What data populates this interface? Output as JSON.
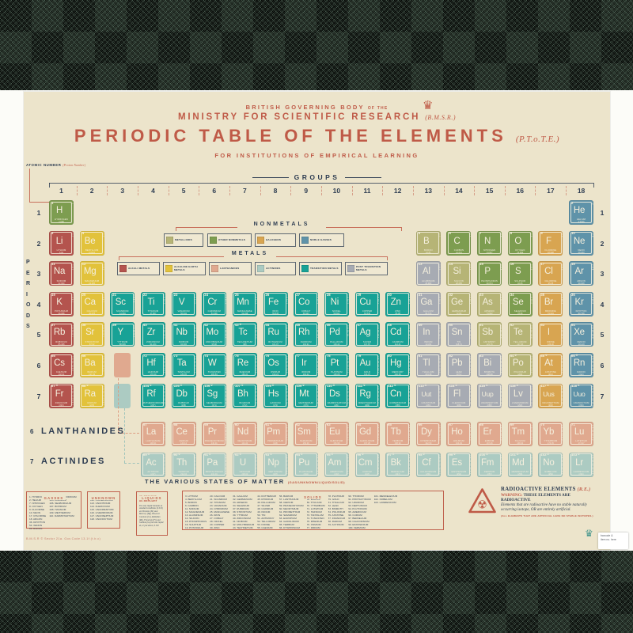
{
  "header": {
    "line1a": "BRITISH GOVERNING BODY",
    "line1b": "OF THE",
    "line2": "MINISTRY FOR SCIENTIFIC RESEARCH",
    "line2_note": "(B.M.S.R.)",
    "title": "PERIODIC TABLE OF THE ELEMENTS",
    "title_note": "(P.T.o.T.E.)",
    "line4": "FOR INSTITUTIONS OF EMPIRICAL LEARNING"
  },
  "groups_title": "GROUPS",
  "periods_title": "PERIODS",
  "group_numbers": [
    "1",
    "2",
    "3",
    "4",
    "5",
    "6",
    "7",
    "8",
    "9",
    "10",
    "11",
    "12",
    "13",
    "14",
    "15",
    "16",
    "17",
    "18"
  ],
  "period_numbers": [
    "1",
    "2",
    "3",
    "4",
    "5",
    "6",
    "7"
  ],
  "annotation": {
    "atomic_number": "ATOMIC NUMBER",
    "atomic_number_note": "(Proton Number)",
    "electron": "ELECTRON CONFIGURATION",
    "symbol": "ELEMENTAL SYMBOL",
    "symbol_note": "(Chemical Symbol)",
    "name": "ELEMENT NAME",
    "weight": "ATOMIC WEIGHT",
    "weight_note": "(Relative Atomic Mass)"
  },
  "legend": {
    "nonmetals_title": "NONMETALS",
    "metals_title": "METALS",
    "nonmetals": [
      {
        "label": "METALLOIDS",
        "cat": "met"
      },
      {
        "label": "OTHER NONMETALS",
        "cat": "nm"
      },
      {
        "label": "HALOGENS",
        "cat": "hal"
      },
      {
        "label": "NOBLE GASSES",
        "cat": "ng"
      }
    ],
    "metals": [
      {
        "label": "ALKALI METALS",
        "cat": "alk"
      },
      {
        "label": "ALKALINE EARTH METALS",
        "cat": "ae"
      },
      {
        "label": "LANTHANIDES",
        "cat": "lan"
      },
      {
        "label": "ACTINIDES",
        "cat": "act"
      },
      {
        "label": "TRANSITION METALS",
        "cat": "tm"
      },
      {
        "label": "POST TRANSITION METALS",
        "cat": "ptm"
      }
    ]
  },
  "fblock": {
    "lan_num": "6",
    "lan_label": "LANTHANIDES",
    "act_num": "7",
    "act_label": "ACTINIDES"
  },
  "states": {
    "title": "THE VARIOUS STATES OF MATTER",
    "subtitle": "(GAS/UNKNOWN/LIQUID/SOLID)",
    "gasses": {
      "title": "GASSES",
      "columns": [
        [
          "1. HYDROGEN",
          "2. HELIUM",
          "7. NITROGEN",
          "8. OXYGEN",
          "9. FLUORINE",
          "10. NEON",
          "17. CHLORINE",
          "18. ARGON",
          "36. KRYPTON",
          "54. XENON",
          "86. RADON"
        ],
        [
          "104. RUTHERFORDIUM",
          "105. DUBNIUM",
          "106. SEABORGIUM",
          "107. BOHRIUM",
          "108. HASSIUM",
          "109. MEITNERIUM",
          "110. DARMSTADTIUM"
        ]
      ]
    },
    "unknown": {
      "title": "UNKNOWN",
      "columns": [
        [
          "111. ROENTGENIUM",
          "112. COPERNICIUM",
          "113. UNUNTRIUM",
          "114. FLEROVIUM",
          "115. UNUNPENTIUM",
          "116. LIVERMORIUM",
          "117. UNUNSEPTIUM",
          "118. UNUNOCTIUM"
        ]
      ]
    },
    "liquids": {
      "title": "LIQUIDS",
      "items": [
        "35. BROMINE",
        "80. MERCURY"
      ],
      "note": "The only liquid elements at standard conditions (S.T.P.) are Bromine (Br) and Mercury (Hg). However Caesium (Cs), Rubidium (Rb), Francium (Fr) and Gallium (Ga) become liquid at, or just above, S.T.P."
    },
    "solids": {
      "title": "SOLIDS",
      "columns": [
        [
          "3. LITHIUM",
          "4. BERYLLIUM",
          "5. BORON",
          "6. CARBON",
          "11. SODIUM",
          "12. MAGNESIUM",
          "13. ALUMINIUM",
          "14. SILICON",
          "15. PHOSPHORUS",
          "16. SULPHUR",
          "19. POTASSIUM"
        ],
        [
          "20. CALCIUM",
          "21. SCANDIUM",
          "22. TITANIUM",
          "23. VANADIUM",
          "24. CHROMIUM",
          "25. MANGANESE",
          "26. IRON",
          "27. COBALT",
          "28. NICKEL",
          "29. COPPER",
          "30. ZINC"
        ],
        [
          "31. GALLIUM",
          "32. GERMANIUM",
          "33. ARSENIC",
          "34. SELENIUM",
          "37. RUBIDIUM",
          "38. STRONTIUM",
          "39. YTTRIUM",
          "40. ZIRCONIUM",
          "41. NIOBIUM",
          "42. MOLYBDENUM",
          "43. TECHNETIUM"
        ],
        [
          "44. RUTHENIUM",
          "45. RHODIUM",
          "46. PALLADIUM",
          "47. SILVER",
          "48. CADMIUM",
          "49. INDIUM",
          "50. TIN",
          "51. ANTIMONY",
          "52. TELLURIUM",
          "53. IODINE",
          "55. CAESIUM"
        ],
        [
          "56. BARIUM",
          "57. LANTHANUM",
          "58. CERIUM",
          "59. PRASEODYMIUM",
          "60. NEODYMIUM",
          "61. PROMETHIUM",
          "62. SAMARIUM",
          "63. EUROPIUM",
          "64. GADOLINIUM",
          "65. TERBIUM",
          "66. DYSPROSIUM"
        ],
        [
          "67. HOLMIUM",
          "68. ERBIUM",
          "69. THULIUM",
          "70. YTTERBIUM",
          "71. LUTETIUM",
          "72. HAFNIUM",
          "73. TANTALUM",
          "74. TUNGSTEN",
          "75. RHENIUM",
          "76. OSMIUM",
          "77. IRIDIUM"
        ],
        [
          "78. PLATINUM",
          "79. GOLD",
          "81. THALLIUM",
          "82. LEAD",
          "83. BISMUTH",
          "84. POLONIUM",
          "85. ASTATINE",
          "87. FRANCIUM",
          "88. RADIUM",
          "89. ACTINIUM"
        ],
        [
          "90. THORIUM",
          "91. PROTACTINIUM",
          "92. URANIUM",
          "93. NEPTUNIUM",
          "94. PLUTONIUM",
          "95. AMERICIUM",
          "96. CURIUM",
          "97. BERKELIUM",
          "98. CALIFORNIUM",
          "99. EINSTEINIUM",
          "100. FERMIUM"
        ],
        [
          "101. MENDELEVIUM",
          "102. NOBELIUM",
          "103. LAWRENCIUM"
        ]
      ]
    }
  },
  "radioactive": {
    "title": "RADIOACTIVE ELEMENTS",
    "title_note": "(R.E.)",
    "warning_label": "WARNING:",
    "warning_text": "THESE ELEMENTS ARE RADIOACTIVE",
    "body": "Elements that are radioactive have no stable naturally occurring isotope, OR are entirely artificial.",
    "footnote": "(ALL ELEMENTS THAT ARE ARTIFICIAL HAVE NO STABLE ISOTOPES.)"
  },
  "fine_print": "B.M.S.R © Sector 21a. Gov.Code 13.1f (t.b.c)",
  "sticker": {
    "line1": "barcode &",
    "line2": "item no. here"
  },
  "icons": {
    "crown": "♛",
    "crest": "♛",
    "trefoil": "☢"
  },
  "colors": {
    "alk": "#b4544e",
    "ae": "#e2c23b",
    "tm": "#18a296",
    "ptm": "#a7abb3",
    "met": "#b6b476",
    "nm": "#7d9d50",
    "hal": "#d8a551",
    "ng": "#5f93a9",
    "lan": "#e0a98f",
    "act": "#accbc2",
    "ink": "#2e3d52",
    "accent": "#bf5a47",
    "paper": "#ece4cb",
    "cell_text": "#f4efdd"
  },
  "elements": [
    [
      1,
      "H",
      "HYDROGEN",
      "1.008",
      "nm",
      0,
      "1"
    ],
    [
      2,
      "He",
      "HELIUM",
      "4.0026",
      "ng",
      0,
      "2"
    ],
    [
      3,
      "Li",
      "LITHIUM",
      "6.94",
      "alk",
      0,
      "2,1"
    ],
    [
      4,
      "Be",
      "BERYLLIUM",
      "9.0122",
      "ae",
      0,
      "2,2"
    ],
    [
      5,
      "B",
      "BORON",
      "10.81",
      "met",
      0,
      "2,3"
    ],
    [
      6,
      "C",
      "CARBON",
      "12.011",
      "nm",
      0,
      "2,4"
    ],
    [
      7,
      "N",
      "NITROGEN",
      "14.007",
      "nm",
      0,
      "2,5"
    ],
    [
      8,
      "O",
      "OXYGEN",
      "15.999",
      "nm",
      0,
      "2,6"
    ],
    [
      9,
      "F",
      "FLUORINE",
      "18.998",
      "hal",
      0,
      "2,7"
    ],
    [
      10,
      "Ne",
      "NEON",
      "20.180",
      "ng",
      0,
      "2,8"
    ],
    [
      11,
      "Na",
      "SODIUM",
      "22.990",
      "alk",
      0,
      "2,8,1"
    ],
    [
      12,
      "Mg",
      "MAGNESIUM",
      "24.305",
      "ae",
      0,
      "2,8,2"
    ],
    [
      13,
      "Al",
      "ALUMINIUM",
      "26.982",
      "ptm",
      0,
      "2,8,3"
    ],
    [
      14,
      "Si",
      "SILICON",
      "28.085",
      "met",
      0,
      "2,8,4"
    ],
    [
      15,
      "P",
      "PHOSPHORUS",
      "30.974",
      "nm",
      0,
      "2,8,5"
    ],
    [
      16,
      "S",
      "SULPHUR",
      "32.06",
      "nm",
      0,
      "2,8,6"
    ],
    [
      17,
      "Cl",
      "CHLORINE",
      "35.45",
      "hal",
      0,
      "2,8,7"
    ],
    [
      18,
      "Ar",
      "ARGON",
      "39.948",
      "ng",
      0,
      "2,8,8"
    ],
    [
      19,
      "K",
      "POTASSIUM",
      "39.098",
      "alk",
      0,
      "2,8,8,1"
    ],
    [
      20,
      "Ca",
      "CALCIUM",
      "40.078",
      "ae",
      0,
      "2,8,8,2"
    ],
    [
      21,
      "Sc",
      "SCANDIUM",
      "44.956",
      "tm",
      0,
      "2,8,9,2"
    ],
    [
      22,
      "Ti",
      "TITANIUM",
      "47.867",
      "tm",
      0,
      "2,8,10,2"
    ],
    [
      23,
      "V",
      "VANADIUM",
      "50.942",
      "tm",
      0,
      "2,8,11,2"
    ],
    [
      24,
      "Cr",
      "CHROMIUM",
      "51.996",
      "tm",
      0,
      "2,8,13,1"
    ],
    [
      25,
      "Mn",
      "MANGANESE",
      "54.938",
      "tm",
      0,
      "2,8,13,2"
    ],
    [
      26,
      "Fe",
      "IRON",
      "55.845",
      "tm",
      0,
      "2,8,14,2"
    ],
    [
      27,
      "Co",
      "COBALT",
      "58.933",
      "tm",
      0,
      "2,8,15,2"
    ],
    [
      28,
      "Ni",
      "NICKEL",
      "58.693",
      "tm",
      0,
      "2,8,16,2"
    ],
    [
      29,
      "Cu",
      "COPPER",
      "63.546",
      "tm",
      0,
      "2,8,18,1"
    ],
    [
      30,
      "Zn",
      "ZINC",
      "65.38",
      "tm",
      0,
      "2,8,18,2"
    ],
    [
      31,
      "Ga",
      "GALLIUM",
      "69.723",
      "ptm",
      0,
      "2,8,18,3"
    ],
    [
      32,
      "Ge",
      "GERMANIUM",
      "72.63",
      "met",
      0,
      "2,8,18,4"
    ],
    [
      33,
      "As",
      "ARSENIC",
      "74.922",
      "met",
      0,
      "2,8,18,5"
    ],
    [
      34,
      "Se",
      "SELENIUM",
      "78.96",
      "nm",
      0,
      "2,8,18,6"
    ],
    [
      35,
      "Br",
      "BROMINE",
      "79.904",
      "hal",
      0,
      "2,8,18,7"
    ],
    [
      36,
      "Kr",
      "KRYPTON",
      "83.798",
      "ng",
      0,
      "2,8,18,8"
    ],
    [
      37,
      "Rb",
      "RUBIDIUM",
      "85.468",
      "alk",
      0,
      "2,8,18,8,1"
    ],
    [
      38,
      "Sr",
      "STRONTIUM",
      "87.62",
      "ae",
      0,
      "2,8,18,8,2"
    ],
    [
      39,
      "Y",
      "YTTRIUM",
      "88.906",
      "tm",
      0,
      "2,8,18,9,2"
    ],
    [
      40,
      "Zr",
      "ZIRCONIUM",
      "91.224",
      "tm",
      0,
      "2,8,18,10,2"
    ],
    [
      41,
      "Nb",
      "NIOBIUM",
      "92.906",
      "tm",
      0,
      "2,8,18,12,1"
    ],
    [
      42,
      "Mo",
      "MOLYBDENUM",
      "95.96",
      "tm",
      0,
      "2,8,18,13,1"
    ],
    [
      43,
      "Tc",
      "TECHNETIUM",
      "(98)",
      "tm",
      1,
      "2,8,18,13,2"
    ],
    [
      44,
      "Ru",
      "RUTHENIUM",
      "101.07",
      "tm",
      0,
      "2,8,18,15,1"
    ],
    [
      45,
      "Rh",
      "RHODIUM",
      "102.91",
      "tm",
      0,
      "2,8,18,16,1"
    ],
    [
      46,
      "Pd",
      "PALLADIUM",
      "106.42",
      "tm",
      0,
      "2,8,18,18"
    ],
    [
      47,
      "Ag",
      "SILVER",
      "107.87",
      "tm",
      0,
      "2,8,18,18,1"
    ],
    [
      48,
      "Cd",
      "CADMIUM",
      "112.41",
      "tm",
      0,
      "2,8,18,18,2"
    ],
    [
      49,
      "In",
      "INDIUM",
      "114.82",
      "ptm",
      0,
      "2,8,18,18,3"
    ],
    [
      50,
      "Sn",
      "TIN",
      "118.71",
      "ptm",
      0,
      "2,8,18,18,4"
    ],
    [
      51,
      "Sb",
      "ANTIMONY",
      "121.76",
      "met",
      0,
      "2,8,18,18,5"
    ],
    [
      52,
      "Te",
      "TELLURIUM",
      "127.60",
      "met",
      0,
      "2,8,18,18,6"
    ],
    [
      53,
      "I",
      "IODINE",
      "126.90",
      "hal",
      0,
      "2,8,18,18,7"
    ],
    [
      54,
      "Xe",
      "XENON",
      "131.29",
      "ng",
      0,
      "2,8,18,18,8"
    ],
    [
      55,
      "Cs",
      "CAESIUM",
      "132.91",
      "alk",
      0,
      "2,8,18,18,8,1"
    ],
    [
      56,
      "Ba",
      "BARIUM",
      "137.33",
      "ae",
      0,
      "2,8,18,18,8,2"
    ],
    [
      57,
      "La",
      "LANTHANUM",
      "138.91",
      "lan",
      0,
      "2,8,18,18,9,2"
    ],
    [
      58,
      "Ce",
      "CERIUM",
      "140.12",
      "lan",
      0,
      "2,8,18,19,9,2"
    ],
    [
      59,
      "Pr",
      "PRASEODYMIUM",
      "140.91",
      "lan",
      0,
      "2,8,18,21,8,2"
    ],
    [
      60,
      "Nd",
      "NEODYMIUM",
      "144.24",
      "lan",
      0,
      "2,8,18,22,8,2"
    ],
    [
      61,
      "Pm",
      "PROMETHIUM",
      "(145)",
      "lan",
      1,
      "2,8,18,23,8,2"
    ],
    [
      62,
      "Sm",
      "SAMARIUM",
      "150.36",
      "lan",
      0,
      "2,8,18,24,8,2"
    ],
    [
      63,
      "Eu",
      "EUROPIUM",
      "151.96",
      "lan",
      0,
      "2,8,18,25,8,2"
    ],
    [
      64,
      "Gd",
      "GADOLINIUM",
      "157.25",
      "lan",
      0,
      "2,8,18,25,9,2"
    ],
    [
      65,
      "Tb",
      "TERBIUM",
      "158.93",
      "lan",
      0,
      "2,8,18,27,8,2"
    ],
    [
      66,
      "Dy",
      "DYSPROSIUM",
      "162.50",
      "lan",
      0,
      "2,8,18,28,8,2"
    ],
    [
      67,
      "Ho",
      "HOLMIUM",
      "164.93",
      "lan",
      0,
      "2,8,18,29,8,2"
    ],
    [
      68,
      "Er",
      "ERBIUM",
      "167.26",
      "lan",
      0,
      "2,8,18,30,8,2"
    ],
    [
      69,
      "Tm",
      "THULIUM",
      "168.93",
      "lan",
      0,
      "2,8,18,31,8,2"
    ],
    [
      70,
      "Yb",
      "YTTERBIUM",
      "173.05",
      "lan",
      0,
      "2,8,18,32,8,2"
    ],
    [
      71,
      "Lu",
      "LUTETIUM",
      "174.97",
      "lan",
      0,
      "2,8,18,32,9,2"
    ],
    [
      72,
      "Hf",
      "HAFNIUM",
      "178.49",
      "tm",
      0,
      "2,8,18,32,10,2"
    ],
    [
      73,
      "Ta",
      "TANTALUM",
      "180.95",
      "tm",
      0,
      "2,8,18,32,11,2"
    ],
    [
      74,
      "W",
      "TUNGSTEN",
      "183.84",
      "tm",
      0,
      "2,8,18,32,12,2"
    ],
    [
      75,
      "Re",
      "RHENIUM",
      "186.21",
      "tm",
      0,
      "2,8,18,32,13,2"
    ],
    [
      76,
      "Os",
      "OSMIUM",
      "190.23",
      "tm",
      0,
      "2,8,18,32,14,2"
    ],
    [
      77,
      "Ir",
      "IRIDIUM",
      "192.22",
      "tm",
      0,
      "2,8,18,32,15,2"
    ],
    [
      78,
      "Pt",
      "PLATINUM",
      "195.08",
      "tm",
      0,
      "2,8,18,32,17,1"
    ],
    [
      79,
      "Au",
      "GOLD",
      "196.97",
      "tm",
      0,
      "2,8,18,32,18,1"
    ],
    [
      80,
      "Hg",
      "MERCURY",
      "200.59",
      "tm",
      0,
      "2,8,18,32,18,2"
    ],
    [
      81,
      "Tl",
      "THALLIUM",
      "204.38",
      "ptm",
      0,
      "2,8,18,32,18,3"
    ],
    [
      82,
      "Pb",
      "LEAD",
      "207.2",
      "ptm",
      0,
      "2,8,18,32,18,4"
    ],
    [
      83,
      "Bi",
      "BISMUTH",
      "208.98",
      "ptm",
      0,
      "2,8,18,32,18,5"
    ],
    [
      84,
      "Po",
      "POLONIUM",
      "(209)",
      "met",
      1,
      "2,8,18,32,18,6"
    ],
    [
      85,
      "At",
      "ASTATINE",
      "(210)",
      "hal",
      1,
      "2,8,18,32,18,7"
    ],
    [
      86,
      "Rn",
      "RADON",
      "(222)",
      "ng",
      1,
      "2,8,18,32,18,8"
    ],
    [
      87,
      "Fr",
      "FRANCIUM",
      "(223)",
      "alk",
      1,
      "2,8,18,32,18,8,1"
    ],
    [
      88,
      "Ra",
      "RADIUM",
      "(226)",
      "ae",
      1,
      "2,8,18,32,18,8,2"
    ],
    [
      89,
      "Ac",
      "ACTINIUM",
      "(227)",
      "act",
      1,
      "2,8,18,32,18,9,2"
    ],
    [
      90,
      "Th",
      "THORIUM",
      "232.04",
      "act",
      1,
      "2,8,18,32,18,10,2"
    ],
    [
      91,
      "Pa",
      "PROTACTINIUM",
      "231.04",
      "act",
      1,
      "2,8,18,32,20,9,2"
    ],
    [
      92,
      "U",
      "URANIUM",
      "238.03",
      "act",
      1,
      "2,8,18,32,21,9,2"
    ],
    [
      93,
      "Np",
      "NEPTUNIUM",
      "(237)",
      "act",
      1,
      "2,8,18,32,22,9,2"
    ],
    [
      94,
      "Pu",
      "PLUTONIUM",
      "(244)",
      "act",
      1,
      "2,8,18,32,24,8,2"
    ],
    [
      95,
      "Am",
      "AMERICIUM",
      "(243)",
      "act",
      1,
      "2,8,18,32,25,8,2"
    ],
    [
      96,
      "Cm",
      "CURIUM",
      "(247)",
      "act",
      1,
      "2,8,18,32,25,9,2"
    ],
    [
      97,
      "Bk",
      "BERKELIUM",
      "(247)",
      "act",
      1,
      "2,8,18,32,27,8,2"
    ],
    [
      98,
      "Cf",
      "CALIFORNIUM",
      "(251)",
      "act",
      1,
      "2,8,18,32,28,8,2"
    ],
    [
      99,
      "Es",
      "EINSTEINIUM",
      "(252)",
      "act",
      1,
      "2,8,18,32,29,8,2"
    ],
    [
      100,
      "Fm",
      "FERMIUM",
      "(257)",
      "act",
      1,
      "2,8,18,32,30,8,2"
    ],
    [
      101,
      "Md",
      "MENDELEVIUM",
      "(258)",
      "act",
      1,
      "2,8,18,32,31,8,2"
    ],
    [
      102,
      "No",
      "NOBELIUM",
      "(259)",
      "act",
      1,
      "2,8,18,32,32,8,2"
    ],
    [
      103,
      "Lr",
      "LAWRENCIUM",
      "(262)",
      "act",
      1,
      "2,8,18,32,32,8,3"
    ],
    [
      104,
      "Rf",
      "RUTHERFORDIUM",
      "(267)",
      "tm",
      1,
      "2,8,18,32,32,10,2"
    ],
    [
      105,
      "Db",
      "DUBNIUM",
      "(268)",
      "tm",
      1,
      "2,8,18,32,32,11,2"
    ],
    [
      106,
      "Sg",
      "SEABORGIUM",
      "(271)",
      "tm",
      1,
      "2,8,18,32,32,12,2"
    ],
    [
      107,
      "Bh",
      "BOHRIUM",
      "(272)",
      "tm",
      1,
      "2,8,18,32,32,13,2"
    ],
    [
      108,
      "Hs",
      "HASSIUM",
      "(270)",
      "tm",
      1,
      "2,8,18,32,32,14,2"
    ],
    [
      109,
      "Mt",
      "MEITNERIUM",
      "(276)",
      "tm",
      1,
      "2,8,18,32,32,15,2"
    ],
    [
      110,
      "Ds",
      "DARMSTADTIUM",
      "(281)",
      "tm",
      1,
      "2,8,18,32,32,16,2"
    ],
    [
      111,
      "Rg",
      "ROENTGENIUM",
      "(280)",
      "tm",
      1,
      "2,8,18,32,32,17,2"
    ],
    [
      112,
      "Cn",
      "COPERNICIUM",
      "(285)",
      "tm",
      1,
      "2,8,18,32,32,18,2"
    ],
    [
      113,
      "Uut",
      "UNUNTRIUM",
      "(284)",
      "ptm",
      1,
      "2,8,18,32,32,18,3"
    ],
    [
      114,
      "Fl",
      "FLEROVIUM",
      "(289)",
      "ptm",
      1,
      "2,8,18,32,32,18,4"
    ],
    [
      115,
      "Uup",
      "UNUNPENTIUM",
      "(288)",
      "ptm",
      1,
      "2,8,18,32,32,18,5"
    ],
    [
      116,
      "Lv",
      "LIVERMORIUM",
      "(293)",
      "ptm",
      1,
      "2,8,18,32,32,18,6"
    ],
    [
      117,
      "Uus",
      "UNUNSEPTIUM",
      "(294)",
      "hal",
      1,
      "2,8,18,32,32,18,7"
    ],
    [
      118,
      "Uuo",
      "UNUNOCTIUM",
      "(294)",
      "ng",
      1,
      "2,8,18,32,32,18,8"
    ]
  ]
}
